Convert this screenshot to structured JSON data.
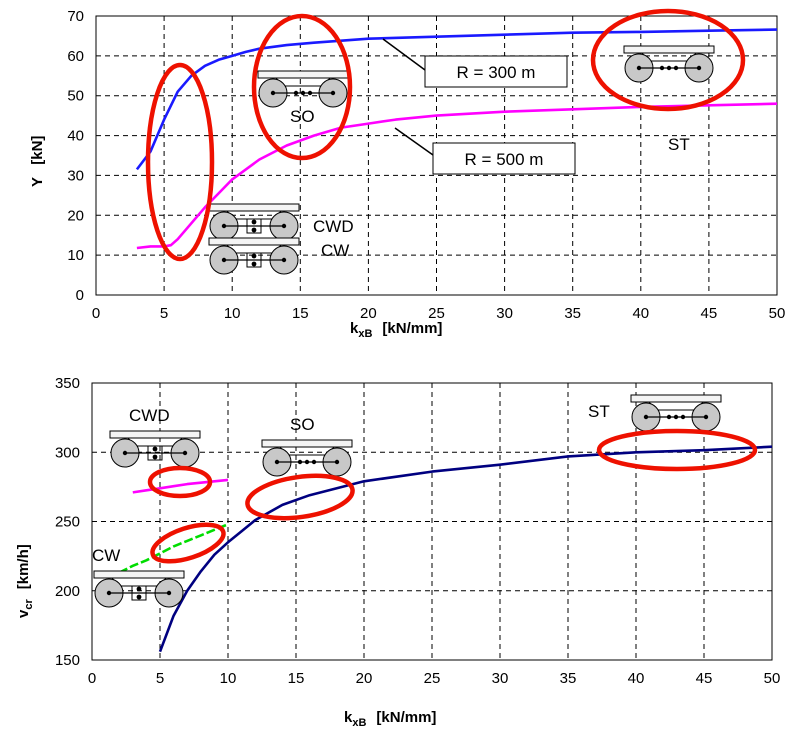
{
  "chart_data": [
    {
      "type": "line",
      "title": "",
      "xlabel": "k",
      "xlabel_sub": "xB",
      "xlabel_unit": "[kN/mm]",
      "ylabel": "Y   [kN]",
      "xlim": [
        0,
        50
      ],
      "ylim": [
        0,
        70
      ],
      "x_ticks": [
        "0",
        "5",
        "10",
        "15",
        "20",
        "25",
        "30",
        "35",
        "40",
        "45",
        "50"
      ],
      "y_ticks": [
        "0",
        "10",
        "20",
        "30",
        "40",
        "50",
        "60",
        "70"
      ],
      "grid": true,
      "series": [
        {
          "name": "R = 300 m",
          "color": "#1a1aff",
          "x": [
            3,
            4,
            5,
            6,
            7,
            8,
            9,
            10,
            11,
            12,
            14,
            16,
            18,
            20,
            25,
            30,
            35,
            40,
            45,
            50
          ],
          "y": [
            31.5,
            36,
            44,
            51,
            55,
            57.5,
            59,
            60,
            61,
            61.8,
            62.7,
            63.3,
            63.8,
            64.3,
            64.8,
            65.3,
            65.8,
            66,
            66.3,
            66.6
          ]
        },
        {
          "name": "R = 500 m",
          "color": "#ff00ff",
          "x": [
            3,
            4,
            5,
            5.5,
            6,
            7,
            8,
            9,
            10,
            12,
            14,
            16,
            18,
            20,
            22,
            25,
            30,
            35,
            40,
            45,
            50
          ],
          "y": [
            11.8,
            12.2,
            12.2,
            12.5,
            14,
            18,
            22,
            25.5,
            29,
            34,
            37.5,
            40,
            42,
            43,
            44,
            45,
            46,
            46.6,
            47.2,
            47.6,
            48
          ]
        }
      ],
      "callouts": [
        {
          "label": "R = 300 m",
          "series": "R = 300 m"
        },
        {
          "label": "R = 500 m",
          "series": "R = 500 m"
        }
      ],
      "annotations": [
        "SO",
        "ST",
        "CWD",
        "CW"
      ]
    },
    {
      "type": "line",
      "title": "",
      "xlabel": "k",
      "xlabel_sub": "xB",
      "xlabel_unit": "[kN/mm]",
      "ylabel": "v",
      "ylabel_sub": "cr",
      "ylabel_unit": "[km/h]",
      "xlim": [
        0,
        50
      ],
      "ylim": [
        150,
        350
      ],
      "x_ticks": [
        "0",
        "5",
        "10",
        "15",
        "20",
        "25",
        "30",
        "35",
        "40",
        "45",
        "50"
      ],
      "y_ticks": [
        "150",
        "200",
        "250",
        "300",
        "350"
      ],
      "grid": true,
      "series": [
        {
          "name": "SO/ST",
          "color": "#000080",
          "x": [
            5,
            6,
            7,
            8,
            9,
            10,
            11,
            12,
            14,
            16,
            18,
            20,
            25,
            30,
            35,
            40,
            45,
            50
          ],
          "y": [
            156,
            182,
            200,
            214,
            226,
            235,
            243,
            251,
            262,
            269,
            274,
            279,
            286,
            291,
            297,
            300,
            301.5,
            304
          ]
        },
        {
          "name": "CWD",
          "color": "#ff00ff",
          "x": [
            3,
            4,
            5,
            6,
            7,
            8,
            9,
            10
          ],
          "y": [
            271,
            272.5,
            274,
            275.5,
            277,
            278,
            279,
            280
          ]
        },
        {
          "name": "CW",
          "color": "#00dd00",
          "x": [
            2,
            3,
            4,
            5,
            6,
            7,
            8,
            9,
            10
          ],
          "y": [
            213,
            218,
            222,
            227,
            232,
            236,
            240,
            244,
            248
          ]
        }
      ],
      "annotations": [
        "CWD",
        "SO",
        "ST",
        "CW"
      ]
    }
  ],
  "colors": {
    "highlight_ellipse": "#ee1100",
    "grid": "#000000"
  }
}
